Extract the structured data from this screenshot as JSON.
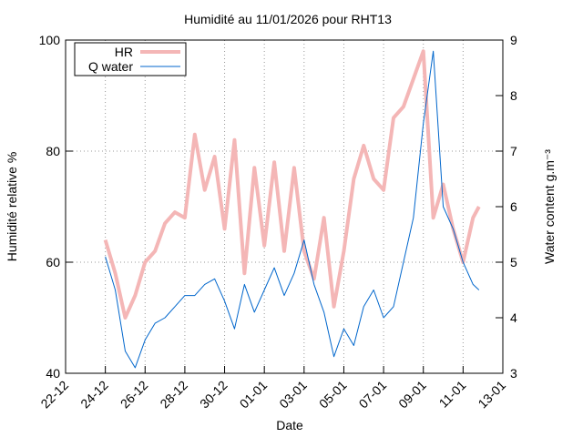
{
  "chart_data": {
    "type": "line",
    "title": "Humidité au 11/01/2026 pour RHT13",
    "x_label": "Date",
    "y_label": "Humidité relative %",
    "y2_label": "Water content g.m⁻³",
    "x": [
      2,
      2.5,
      3,
      3.5,
      4,
      4.5,
      5,
      5.5,
      6,
      6.5,
      7,
      7.5,
      8,
      8.5,
      9,
      9.5,
      10,
      10.5,
      11,
      11.5,
      12,
      12.5,
      13,
      13.5,
      14,
      14.5,
      15,
      15.5,
      16,
      16.5,
      17,
      17.5,
      18,
      18.5,
      19,
      19.5,
      20,
      20.5,
      20.8
    ],
    "series": [
      {
        "name": "HR",
        "color": "#f4b6b6",
        "values": [
          64,
          58,
          50,
          54,
          60,
          62,
          67,
          69,
          68,
          83,
          73,
          79,
          66,
          82,
          58,
          77,
          63,
          78,
          62,
          77,
          62,
          57,
          68,
          52,
          62,
          75,
          81,
          75,
          73,
          86,
          88,
          93,
          98,
          68,
          74,
          66,
          60,
          68,
          70
        ]
      },
      {
        "name": "Q water",
        "color": "#0066cc",
        "axis": "y2",
        "values": [
          5.1,
          4.5,
          3.4,
          3.1,
          3.6,
          3.9,
          4.0,
          4.2,
          4.4,
          4.4,
          4.6,
          4.7,
          4.3,
          3.8,
          4.6,
          4.1,
          4.5,
          4.9,
          4.4,
          4.8,
          5.4,
          4.6,
          4.1,
          3.3,
          3.8,
          3.5,
          4.2,
          4.5,
          4.0,
          4.2,
          5.0,
          5.8,
          7.5,
          8.8,
          6.0,
          5.6,
          5.0,
          4.6,
          4.5
        ]
      }
    ],
    "xlim": [
      0,
      22
    ],
    "xticks": [
      {
        "value": 0,
        "label": "22-12"
      },
      {
        "value": 2,
        "label": "24-12"
      },
      {
        "value": 4,
        "label": "26-12"
      },
      {
        "value": 6,
        "label": "28-12"
      },
      {
        "value": 8,
        "label": "30-12"
      },
      {
        "value": 10,
        "label": "01-01"
      },
      {
        "value": 12,
        "label": "03-01"
      },
      {
        "value": 14,
        "label": "05-01"
      },
      {
        "value": 16,
        "label": "07-01"
      },
      {
        "value": 18,
        "label": "09-01"
      },
      {
        "value": 20,
        "label": "11-01"
      },
      {
        "value": 22,
        "label": "13-01"
      }
    ],
    "ylim": [
      40,
      100
    ],
    "yticks": [
      40,
      60,
      80,
      100
    ],
    "y2lim": [
      3,
      9
    ],
    "y2ticks": [
      3,
      4,
      5,
      6,
      7,
      8,
      9
    ],
    "grid": true,
    "legend": "top-left"
  }
}
